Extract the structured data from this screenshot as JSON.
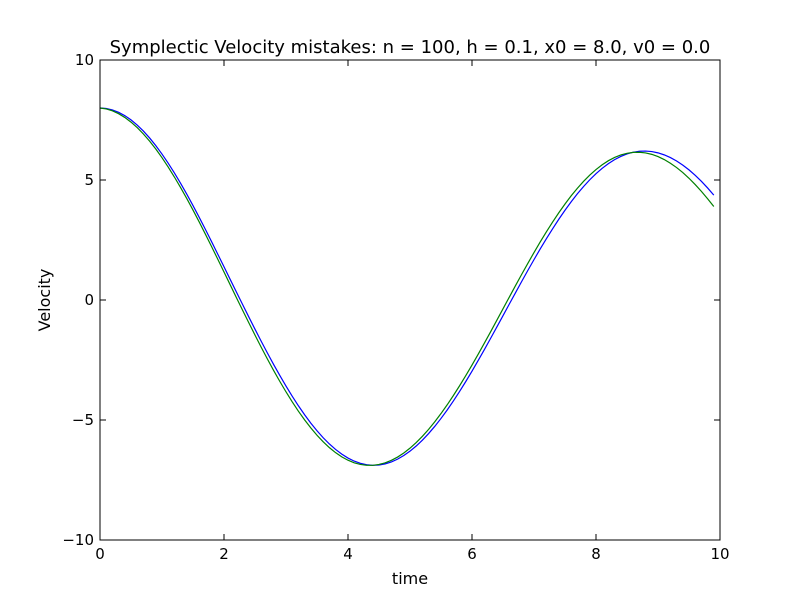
{
  "chart_data": {
    "type": "line",
    "title": "Symplectic Velocity mistakes: n = 100,  h = 0.1,  x0 = 8.0,  v0 = 0.0",
    "xlabel": "time",
    "ylabel": "Velocity",
    "xlim": [
      0,
      10
    ],
    "ylim": [
      -10,
      10
    ],
    "xticks": [
      0,
      2,
      4,
      6,
      8,
      10
    ],
    "yticks": [
      -10,
      -5,
      0,
      5,
      10
    ],
    "xtick_labels": [
      "0",
      "2",
      "4",
      "6",
      "8",
      "10"
    ],
    "ytick_labels": [
      "−10",
      "−5",
      "0",
      "5",
      "10"
    ],
    "grid": false,
    "x": [
      0.0,
      0.1,
      0.2,
      0.3,
      0.4,
      0.5,
      0.6,
      0.7,
      0.8,
      0.9,
      1.0,
      1.1,
      1.2,
      1.3,
      1.4,
      1.5,
      1.6,
      1.7,
      1.8,
      1.9,
      2.0,
      2.1,
      2.2,
      2.3,
      2.4,
      2.5,
      2.6,
      2.7,
      2.8,
      2.9,
      3.0,
      3.1,
      3.2,
      3.3,
      3.4,
      3.5,
      3.6,
      3.7,
      3.8,
      3.9,
      4.0,
      4.1,
      4.2,
      4.3,
      4.4,
      4.5,
      4.6,
      4.7,
      4.8,
      4.9,
      5.0,
      5.1,
      5.2,
      5.3,
      5.4,
      5.5,
      5.6,
      5.7,
      5.8,
      5.9,
      6.0,
      6.1,
      6.2,
      6.3,
      6.4,
      6.5,
      6.6,
      6.7,
      6.8,
      6.9,
      7.0,
      7.1,
      7.2,
      7.3,
      7.4,
      7.5,
      7.6,
      7.7,
      7.8,
      7.9,
      8.0,
      8.1,
      8.2,
      8.3,
      8.4,
      8.5,
      8.6,
      8.7,
      8.8,
      8.9,
      9.0,
      9.1,
      9.2,
      9.3,
      9.4,
      9.5,
      9.6,
      9.7,
      9.8,
      9.9
    ],
    "series": [
      {
        "color": "#0000ff",
        "values": [
          8.0,
          7.98,
          7.92,
          7.821,
          7.682,
          7.505,
          7.29,
          7.038,
          6.752,
          6.432,
          6.081,
          5.7,
          5.293,
          4.861,
          4.407,
          3.934,
          3.445,
          2.942,
          2.429,
          1.908,
          1.384,
          0.857,
          0.333,
          -0.188,
          -0.706,
          -1.216,
          -1.718,
          -2.208,
          -2.684,
          -3.145,
          -3.586,
          -4.008,
          -4.407,
          -4.781,
          -5.129,
          -5.449,
          -5.74,
          -6.0,
          -6.228,
          -6.423,
          -6.585,
          -6.713,
          -6.806,
          -6.864,
          -6.887,
          -6.875,
          -6.828,
          -6.746,
          -6.63,
          -6.48,
          -6.298,
          -6.084,
          -5.839,
          -5.565,
          -5.263,
          -4.935,
          -4.582,
          -4.206,
          -3.81,
          -3.396,
          -2.965,
          -2.52,
          -2.064,
          -1.599,
          -1.128,
          -0.653,
          -0.177,
          0.296,
          0.766,
          1.229,
          1.683,
          2.126,
          2.555,
          2.968,
          3.364,
          3.74,
          4.094,
          4.425,
          4.731,
          5.011,
          5.264,
          5.488,
          5.683,
          5.848,
          5.982,
          6.085,
          6.157,
          6.197,
          6.206,
          6.184,
          6.131,
          6.047,
          5.934,
          5.791,
          5.62,
          5.421,
          5.195,
          4.944,
          4.669,
          4.371
        ]
      },
      {
        "color": "#008000",
        "values": [
          8.0,
          7.96,
          7.881,
          7.763,
          7.607,
          7.413,
          7.183,
          6.918,
          6.62,
          6.29,
          5.929,
          5.54,
          5.125,
          4.686,
          4.226,
          3.747,
          3.252,
          2.743,
          2.224,
          1.697,
          1.166,
          0.633,
          0.101,
          -0.427,
          -0.949,
          -1.464,
          -1.968,
          -2.459,
          -2.934,
          -3.391,
          -3.828,
          -4.242,
          -4.632,
          -4.995,
          -5.33,
          -5.636,
          -5.91,
          -6.152,
          -6.361,
          -6.536,
          -6.676,
          -6.782,
          -6.852,
          -6.888,
          -6.888,
          -6.853,
          -6.784,
          -6.681,
          -6.544,
          -6.374,
          -6.173,
          -5.941,
          -5.679,
          -5.389,
          -5.073,
          -4.731,
          -4.366,
          -3.979,
          -3.573,
          -3.149,
          -2.71,
          -2.258,
          -1.795,
          -1.324,
          -0.847,
          -0.367,
          0.113,
          0.59,
          1.062,
          1.525,
          1.978,
          2.418,
          2.842,
          3.249,
          3.636,
          4.001,
          4.342,
          4.658,
          4.946,
          5.206,
          5.436,
          5.636,
          5.804,
          5.94,
          6.043,
          6.113,
          6.151,
          6.156,
          6.128,
          6.068,
          5.976,
          5.853,
          5.7,
          5.518,
          5.309,
          5.073,
          4.811,
          4.527,
          4.221,
          3.895
        ]
      }
    ]
  }
}
